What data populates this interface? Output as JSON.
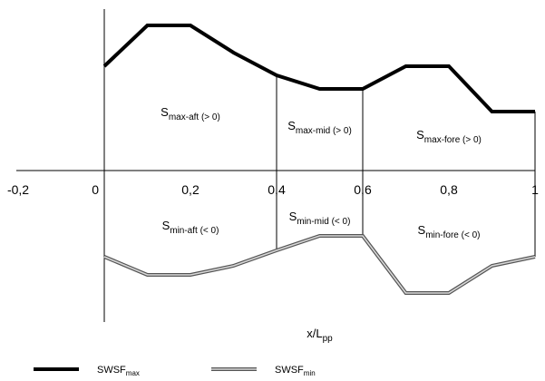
{
  "chart_data": {
    "type": "line",
    "title": "",
    "xlabel": {
      "base": "x/L",
      "sub": "pp"
    },
    "ylabel": "",
    "xlim": [
      -0.2,
      1.0
    ],
    "grid": false,
    "legend_position": "bottom-left",
    "x_ticks": [
      "-0,2",
      "0",
      "0,2",
      "0,4",
      "0,6",
      "0,8",
      "1"
    ],
    "section_boundaries": [
      0.4,
      0.6
    ],
    "series": [
      {
        "name": {
          "base": "SWSF",
          "sub": "max"
        },
        "style": "solid-black-thick",
        "x": [
          0.0,
          0.1,
          0.2,
          0.3,
          0.4,
          0.5,
          0.6,
          0.7,
          0.8,
          0.9,
          1.0
        ],
        "y": [
          1.15,
          1.6,
          1.6,
          1.3,
          1.05,
          0.9,
          0.9,
          1.15,
          1.15,
          0.65,
          0.65
        ]
      },
      {
        "name": {
          "base": "SWSF",
          "sub": "min"
        },
        "style": "double-grey",
        "x": [
          0.0,
          0.1,
          0.2,
          0.3,
          0.4,
          0.5,
          0.6,
          0.7,
          0.8,
          0.9,
          1.0
        ],
        "y": [
          -0.95,
          -1.15,
          -1.15,
          -1.05,
          -0.88,
          -0.72,
          -0.72,
          -1.35,
          -1.35,
          -1.05,
          -0.95
        ]
      }
    ],
    "region_labels": [
      {
        "base": "S",
        "sub": "max-aft (> 0)",
        "x": 0.2,
        "y": 0.6
      },
      {
        "base": "S",
        "sub": "max-mid (> 0)",
        "x": 0.5,
        "y": 0.45
      },
      {
        "base": "S",
        "sub": "max-fore (> 0)",
        "x": 0.8,
        "y": 0.35
      },
      {
        "base": "S",
        "sub": "min-aft (< 0)",
        "x": 0.2,
        "y": -0.65
      },
      {
        "base": "S",
        "sub": "min-mid (< 0)",
        "x": 0.5,
        "y": -0.55
      },
      {
        "base": "S",
        "sub": "min-fore (< 0)",
        "x": 0.8,
        "y": -0.7
      }
    ]
  }
}
